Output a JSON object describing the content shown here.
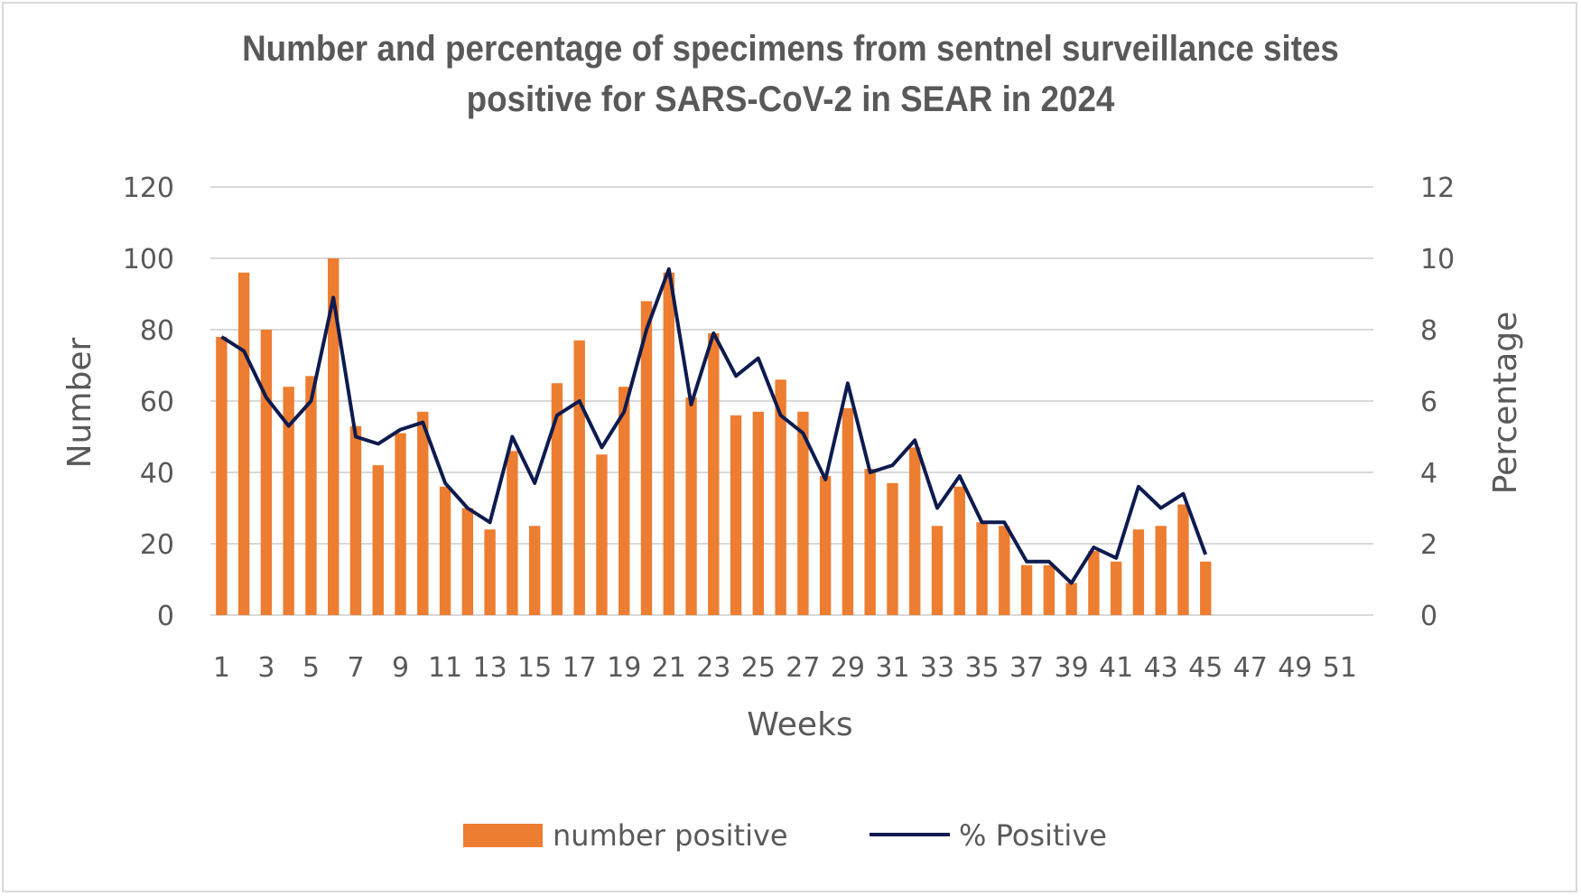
{
  "chart_data": {
    "type": "bar+line",
    "title_lines": [
      "Number and percentage of specimens from sentnel surveillance sites",
      "positive for SARS-CoV-2 in SEAR in 2024"
    ],
    "xlabel": "Weeks",
    "ylabel_left": "Number",
    "ylabel_right": "Percentage",
    "ylim_left": [
      0,
      120
    ],
    "ylim_right": [
      0,
      12
    ],
    "yticks_left": [
      0,
      20,
      40,
      60,
      80,
      100,
      120
    ],
    "yticks_right": [
      0,
      2,
      4,
      6,
      8,
      10,
      12
    ],
    "weeks_total": 52,
    "xtick_labels": [
      "1",
      "3",
      "5",
      "7",
      "9",
      "11",
      "13",
      "15",
      "17",
      "19",
      "21",
      "23",
      "25",
      "27",
      "29",
      "31",
      "33",
      "35",
      "37",
      "39",
      "41",
      "43",
      "45",
      "47",
      "49",
      "51"
    ],
    "grid": true,
    "legend_position": "bottom",
    "series": [
      {
        "name": "number positive",
        "type": "bar",
        "axis": "left",
        "color": "#ED7D31",
        "values": [
          78,
          96,
          80,
          64,
          67,
          100,
          53,
          42,
          51,
          57,
          36,
          30,
          24,
          46,
          25,
          65,
          77,
          45,
          64,
          88,
          96,
          61,
          79,
          56,
          57,
          66,
          57,
          39,
          58,
          41,
          37,
          47,
          25,
          36,
          26,
          25,
          14,
          14,
          9,
          18,
          15,
          24,
          25,
          31,
          15
        ]
      },
      {
        "name": "% Positive",
        "type": "line",
        "axis": "right",
        "color": "#0D1B4F",
        "values": [
          7.8,
          7.4,
          6.1,
          5.3,
          6.0,
          8.9,
          5.0,
          4.8,
          5.2,
          5.4,
          3.7,
          3.0,
          2.6,
          5.0,
          3.7,
          5.6,
          6.0,
          4.7,
          5.7,
          8.0,
          9.7,
          5.9,
          7.9,
          6.7,
          7.2,
          5.6,
          5.1,
          3.8,
          6.5,
          4.0,
          4.2,
          4.9,
          3.0,
          3.9,
          2.6,
          2.6,
          1.5,
          1.5,
          0.9,
          1.9,
          1.6,
          3.6,
          3.0,
          3.4,
          1.7
        ]
      }
    ]
  }
}
